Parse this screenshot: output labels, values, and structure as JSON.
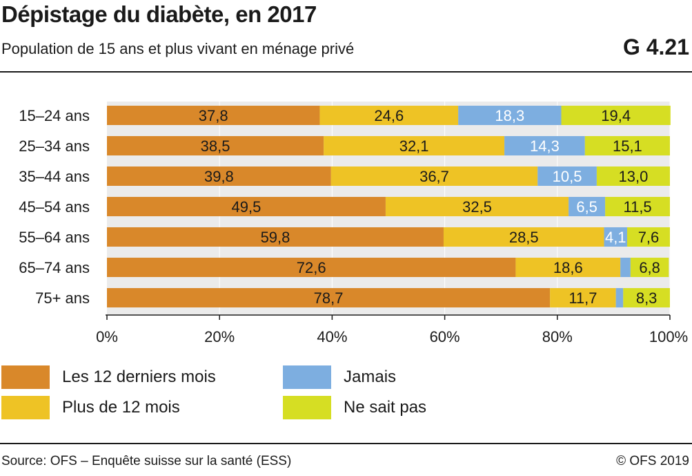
{
  "header": {
    "title": "Dépistage du diabète, en 2017",
    "subtitle": "Population de 15 ans et plus vivant en ménage privé",
    "figure_id": "G 4.21"
  },
  "footer": {
    "source": "Source: OFS – Enquête suisse sur la santé (ESS)",
    "copyright": "© OFS 2019"
  },
  "chart_data": {
    "type": "bar",
    "orientation": "horizontal",
    "stacked": true,
    "categories": [
      "15–24 ans",
      "25–34 ans",
      "35–44 ans",
      "45–54 ans",
      "55–64 ans",
      "65–74 ans",
      "75+ ans"
    ],
    "series": [
      {
        "name": "Les 12 derniers mois",
        "color": "#D9882A",
        "label_color": "#1a1a1a",
        "values": [
          37.8,
          38.5,
          39.8,
          49.5,
          59.8,
          72.6,
          78.7
        ]
      },
      {
        "name": "Plus de 12 mois",
        "color": "#EEC325",
        "label_color": "#1a1a1a",
        "values": [
          24.6,
          32.1,
          36.7,
          32.5,
          28.5,
          18.6,
          11.7
        ]
      },
      {
        "name": "Jamais",
        "color": "#7DAEE0",
        "label_color": "#ffffff",
        "values": [
          18.3,
          14.3,
          10.5,
          6.5,
          4.1,
          1.8,
          1.3
        ]
      },
      {
        "name": "Ne sait pas",
        "color": "#D6DE23",
        "label_color": "#1a1a1a",
        "values": [
          19.4,
          15.1,
          13.0,
          11.5,
          7.6,
          6.8,
          8.3
        ]
      }
    ],
    "labels": [
      [
        "37,8",
        "38,5",
        "39,8",
        "49,5",
        "59,8",
        "72,6",
        "78,7"
      ],
      [
        "24,6",
        "32,1",
        "36,7",
        "32,5",
        "28,5",
        "18,6",
        "11,7"
      ],
      [
        "18,3",
        "14,3",
        "10,5",
        "6,5",
        "4,1",
        "",
        ""
      ],
      [
        "19,4",
        "15,1",
        "13,0",
        "11,5",
        "7,6",
        "6,8",
        "8,3"
      ]
    ],
    "xlim": [
      0,
      100
    ],
    "xticks": [
      0,
      20,
      40,
      60,
      80,
      100
    ],
    "xtick_labels": [
      "0%",
      "20%",
      "40%",
      "60%",
      "80%",
      "100%"
    ],
    "grid": true,
    "legend_position": "bottom"
  },
  "colors": {
    "background": "#ffffff",
    "plot_background": "#EBEBEB",
    "gridline": "#ffffff",
    "text": "#1a1a1a"
  }
}
